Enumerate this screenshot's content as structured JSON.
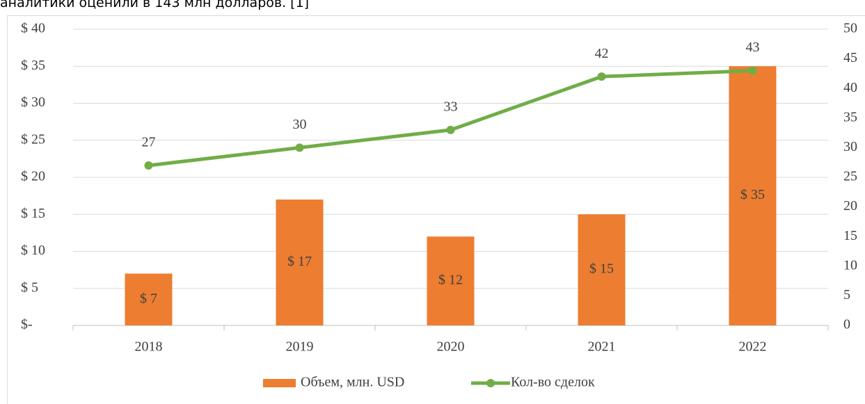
{
  "text_above": "аналитики оценили в 143 млн долларов. [1]",
  "chart_data": {
    "type": "bar",
    "categories": [
      "2018",
      "2019",
      "2020",
      "2021",
      "2022"
    ],
    "series": [
      {
        "name": "Объем, млн. USD",
        "type": "bar",
        "color": "#ed7d31",
        "values": [
          7,
          17,
          12,
          15,
          35
        ],
        "value_labels": [
          "$ 7",
          "$ 17",
          "$ 12",
          "$ 15",
          "$ 35"
        ]
      },
      {
        "name": "Кол-во сделок",
        "type": "line",
        "axis": "y2",
        "color": "#70ad47",
        "values": [
          27,
          30,
          33,
          42,
          43
        ]
      }
    ],
    "ylim": [
      0,
      40
    ],
    "yticks": [
      {
        "value": 0,
        "label": "$-"
      },
      {
        "value": 5,
        "label": "$ 5"
      },
      {
        "value": 10,
        "label": "$ 10"
      },
      {
        "value": 15,
        "label": "$ 15"
      },
      {
        "value": 20,
        "label": "$ 20"
      },
      {
        "value": 25,
        "label": "$ 25"
      },
      {
        "value": 30,
        "label": "$ 30"
      },
      {
        "value": 35,
        "label": "$ 35"
      },
      {
        "value": 40,
        "label": "$ 40"
      }
    ],
    "y2lim": [
      0,
      50
    ],
    "y2ticks": [
      0,
      5,
      10,
      15,
      20,
      25,
      30,
      35,
      40,
      45,
      50
    ],
    "grid": true,
    "legend": "bottom"
  }
}
